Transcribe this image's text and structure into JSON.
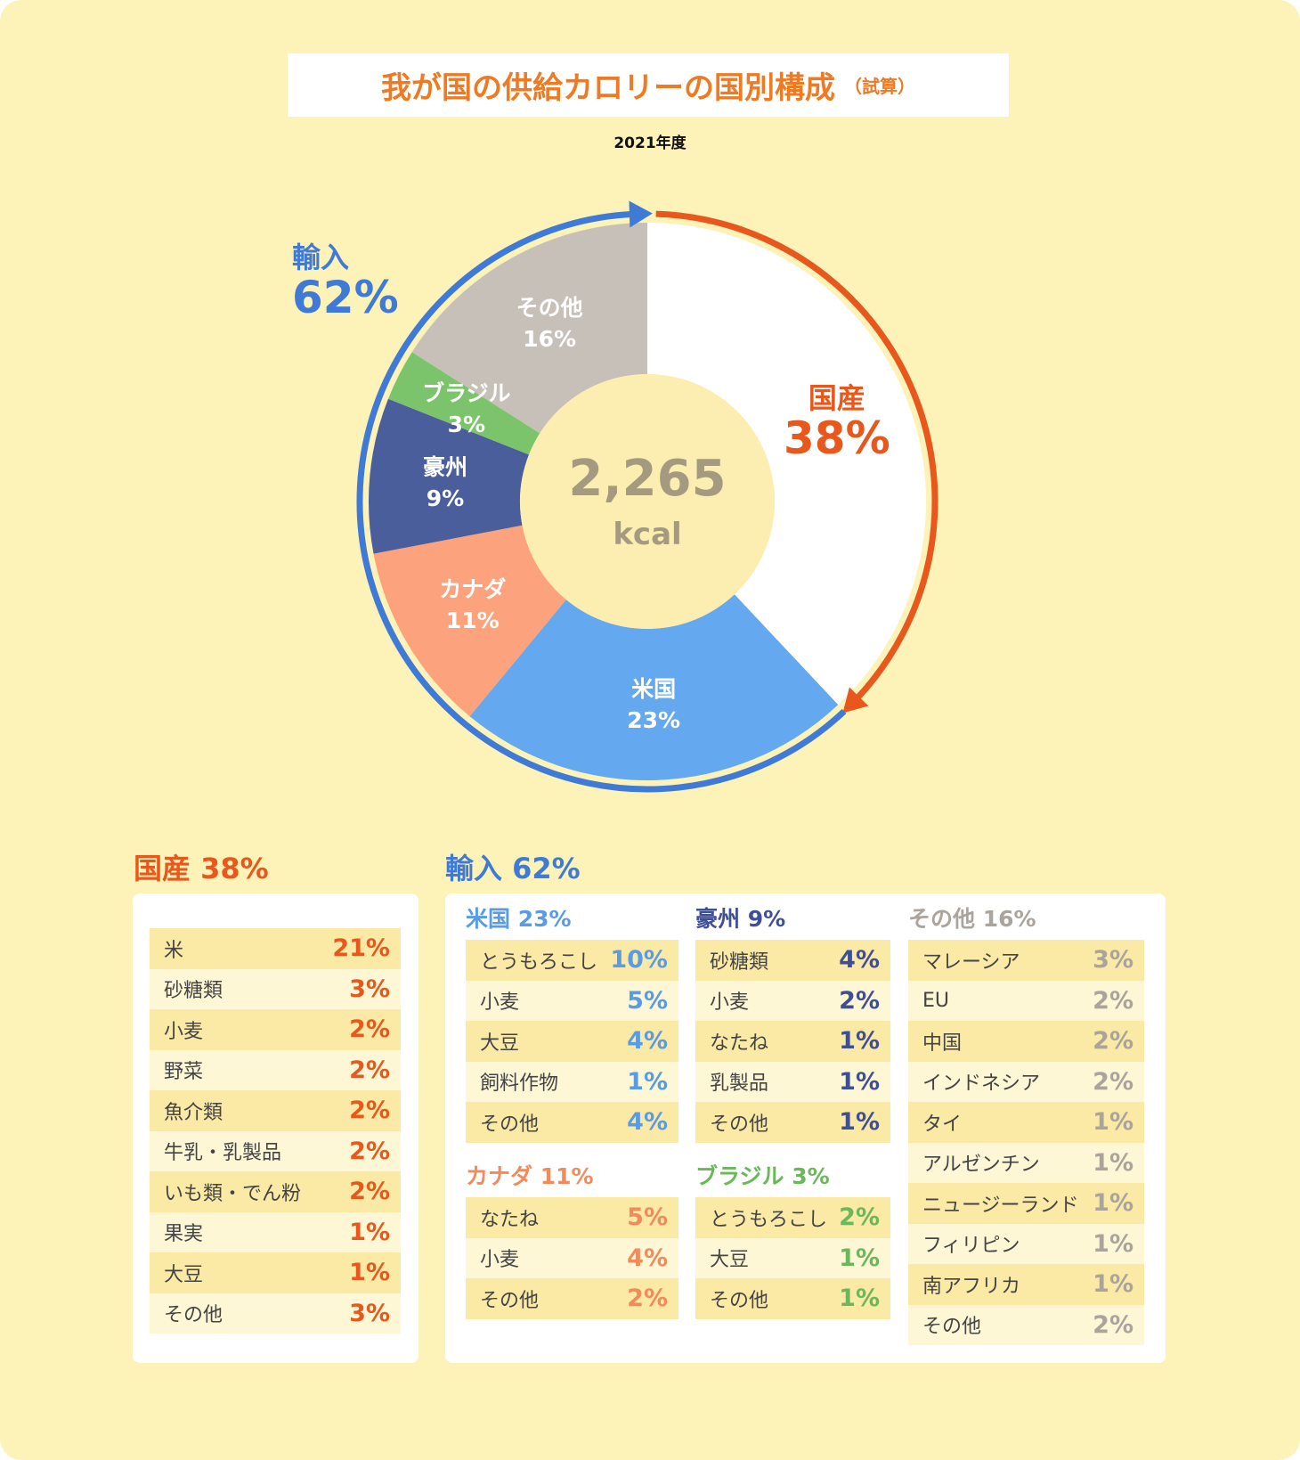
{
  "title": "我が国の供給カロリーの国別構成",
  "title_note": "（試算）",
  "subtitle": "2021年度",
  "chart_data": {
    "type": "donut",
    "center_value": "2,265",
    "center_unit": "kcal",
    "slices": [
      {
        "label": "国産",
        "value": 38,
        "color": "#ffffff"
      },
      {
        "label": "米国",
        "value": 23,
        "color": "#64a8f0"
      },
      {
        "label": "カナダ",
        "value": 11,
        "color": "#fca27c"
      },
      {
        "label": "豪州",
        "value": 9,
        "color": "#4a5e9c"
      },
      {
        "label": "ブラジル",
        "value": 3,
        "color": "#7cc46c"
      },
      {
        "label": "その他",
        "value": 16,
        "color": "#c6c0b8"
      }
    ],
    "groups": {
      "import": {
        "label": "輸入",
        "percent": "62%",
        "color": "#3f7bd6"
      },
      "domestic": {
        "label": "国産",
        "percent": "38%",
        "color": "#e8581c"
      }
    }
  },
  "domestic": {
    "heading": "国産 38%",
    "color": "#e8581c",
    "rows": [
      [
        "米",
        "21%"
      ],
      [
        "砂糖類",
        "3%"
      ],
      [
        "小麦",
        "2%"
      ],
      [
        "野菜",
        "2%"
      ],
      [
        "魚介類",
        "2%"
      ],
      [
        "牛乳・乳製品",
        "2%"
      ],
      [
        "いも類・でん粉",
        "2%"
      ],
      [
        "果実",
        "1%"
      ],
      [
        "大豆",
        "1%"
      ],
      [
        "その他",
        "3%"
      ]
    ]
  },
  "imports": {
    "heading": "輸入 62%",
    "color": "#3f7bd6",
    "tables": [
      {
        "heading": "米国 23%",
        "color": "#5a9be6",
        "rows": [
          [
            "とうもろこし",
            "10%"
          ],
          [
            "小麦",
            "5%"
          ],
          [
            "大豆",
            "4%"
          ],
          [
            "飼料作物",
            "1%"
          ],
          [
            "その他",
            "4%"
          ]
        ]
      },
      {
        "heading": "カナダ 11%",
        "color": "#f28a5c",
        "rows": [
          [
            "なたね",
            "5%"
          ],
          [
            "小麦",
            "4%"
          ],
          [
            "その他",
            "2%"
          ]
        ]
      },
      {
        "heading": "豪州 9%",
        "color": "#3f4f94",
        "rows": [
          [
            "砂糖類",
            "4%"
          ],
          [
            "小麦",
            "2%"
          ],
          [
            "なたね",
            "1%"
          ],
          [
            "乳製品",
            "1%"
          ],
          [
            "その他",
            "1%"
          ]
        ]
      },
      {
        "heading": "ブラジル 3%",
        "color": "#6ab85a",
        "rows": [
          [
            "とうもろこし",
            "2%"
          ],
          [
            "大豆",
            "1%"
          ],
          [
            "その他",
            "1%"
          ]
        ]
      },
      {
        "heading": "その他 16%",
        "color": "#aaa49c",
        "rows": [
          [
            "マレーシア",
            "3%"
          ],
          [
            "EU",
            "2%"
          ],
          [
            "中国",
            "2%"
          ],
          [
            "インドネシア",
            "2%"
          ],
          [
            "タイ",
            "1%"
          ],
          [
            "アルゼンチン",
            "1%"
          ],
          [
            "ニュージーランド",
            "1%"
          ],
          [
            "フィリピン",
            "1%"
          ],
          [
            "南アフリカ",
            "1%"
          ],
          [
            "その他",
            "2%"
          ]
        ]
      }
    ]
  }
}
